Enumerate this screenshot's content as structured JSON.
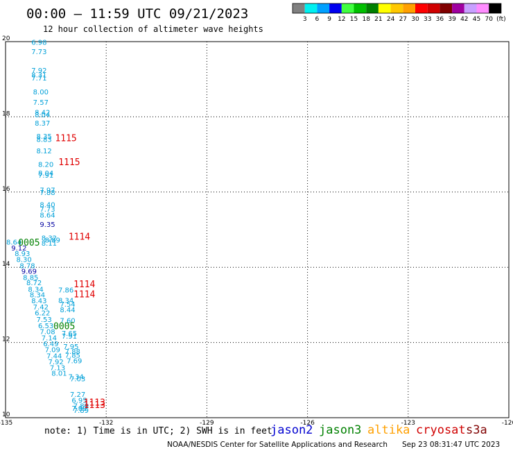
{
  "header": {
    "title": "00:00 – 11:59 UTC 09/21/2023",
    "subtitle": "12 hour collection of altimeter wave heights"
  },
  "colorbar": {
    "labels": [
      "3",
      "6",
      "9",
      "12",
      "15",
      "18",
      "21",
      "24",
      "27",
      "30",
      "33",
      "36",
      "39",
      "42",
      "45",
      "70",
      "(ft)"
    ],
    "colors": [
      "#808080",
      "#00f0f0",
      "#00a0ff",
      "#0000f0",
      "#40ff40",
      "#00c000",
      "#008000",
      "#ffff00",
      "#ffc800",
      "#ffa000",
      "#ff0000",
      "#d00000",
      "#800000",
      "#a000a0",
      "#c8a0ff",
      "#ff8cff",
      "#000000"
    ]
  },
  "footer": {
    "note": "note: 1) Time is in UTC; 2) SWH is in feet",
    "satellites": [
      {
        "name": "jason2",
        "color": "#0000d0"
      },
      {
        "name": "jason3",
        "color": "#008000"
      },
      {
        "name": "altika",
        "color": "#ffa000"
      },
      {
        "name": "cryosat",
        "color": "#d00000"
      },
      {
        "name": "s3a",
        "color": "#800000"
      }
    ],
    "credit": "NOAA/NESDIS Center for Satellite Applications and Research",
    "timestamp": "Sep 23 08:31:47 UTC 2023"
  },
  "chart_data": {
    "type": "scatter",
    "xlim": [
      -135,
      -120
    ],
    "ylim": [
      10,
      20
    ],
    "x_ticks": [
      -135,
      -132,
      -129,
      -126,
      -123,
      -120
    ],
    "x_tick_labels": [
      "-135",
      "-132",
      "-129",
      "-126",
      "-123",
      "-120"
    ],
    "y_ticks": [
      10,
      12,
      14,
      16,
      18,
      20
    ],
    "grid": true,
    "colors": {
      "light": "#00a0d8",
      "dark": "#0000a0",
      "pass_jason3": "#008000",
      "pass_cryosat": "#e00000"
    },
    "points": [
      {
        "x": -134.0,
        "y": 19.92,
        "label": "6.98",
        "c": "light"
      },
      {
        "x": -134.0,
        "y": 19.67,
        "label": "7.73",
        "c": "light"
      },
      {
        "x": -134.0,
        "y": 19.17,
        "label": "7.92",
        "c": "light"
      },
      {
        "x": -134.0,
        "y": 19.05,
        "label": "8.31",
        "c": "light"
      },
      {
        "x": -134.0,
        "y": 18.97,
        "label": "7.71",
        "c": "light"
      },
      {
        "x": -133.95,
        "y": 18.6,
        "label": "8.00",
        "c": "light"
      },
      {
        "x": -133.95,
        "y": 18.32,
        "label": "7.57",
        "c": "light"
      },
      {
        "x": -133.9,
        "y": 18.05,
        "label": "8.42",
        "c": "light"
      },
      {
        "x": -133.9,
        "y": 17.99,
        "label": "8.04",
        "c": "light"
      },
      {
        "x": -133.9,
        "y": 17.77,
        "label": "8.37",
        "c": "light"
      },
      {
        "x": -133.85,
        "y": 17.42,
        "label": "8.35",
        "c": "light"
      },
      {
        "x": -133.85,
        "y": 17.33,
        "label": "8.83",
        "c": "light"
      },
      {
        "x": -133.85,
        "y": 17.03,
        "label": "8.12",
        "c": "light"
      },
      {
        "x": -133.8,
        "y": 16.67,
        "label": "8.20",
        "c": "light"
      },
      {
        "x": -133.8,
        "y": 16.44,
        "label": "8.04",
        "c": "light"
      },
      {
        "x": -133.8,
        "y": 16.38,
        "label": "7.91",
        "c": "light"
      },
      {
        "x": -133.75,
        "y": 15.99,
        "label": "7.97",
        "c": "light"
      },
      {
        "x": -133.75,
        "y": 15.92,
        "label": "7.88",
        "c": "light"
      },
      {
        "x": -133.75,
        "y": 15.6,
        "label": "8.40",
        "c": "light"
      },
      {
        "x": -133.75,
        "y": 15.48,
        "label": "7.73",
        "c": "light"
      },
      {
        "x": -133.75,
        "y": 15.32,
        "label": "8.64",
        "c": "light"
      },
      {
        "x": -133.75,
        "y": 15.07,
        "label": "9.35",
        "c": "dark"
      },
      {
        "x": -133.7,
        "y": 14.71,
        "label": "8.32",
        "c": "light"
      },
      {
        "x": -133.6,
        "y": 14.66,
        "label": "8.89",
        "c": "light"
      },
      {
        "x": -133.7,
        "y": 14.58,
        "label": "8.11",
        "c": "light"
      },
      {
        "x": -134.75,
        "y": 14.6,
        "label": "8.64",
        "c": "light"
      },
      {
        "x": -134.6,
        "y": 14.45,
        "label": "9.12",
        "c": "dark"
      },
      {
        "x": -134.5,
        "y": 14.3,
        "label": "8.93",
        "c": "light"
      },
      {
        "x": -134.45,
        "y": 14.14,
        "label": "8.30",
        "c": "light"
      },
      {
        "x": -134.35,
        "y": 13.98,
        "label": "8.78",
        "c": "light"
      },
      {
        "x": -134.3,
        "y": 13.83,
        "label": "9.69",
        "c": "dark"
      },
      {
        "x": -134.25,
        "y": 13.66,
        "label": "8.85",
        "c": "light"
      },
      {
        "x": -134.15,
        "y": 13.52,
        "label": "8.72",
        "c": "light"
      },
      {
        "x": -134.1,
        "y": 13.35,
        "label": "8.34",
        "c": "light"
      },
      {
        "x": -134.05,
        "y": 13.2,
        "label": "8.34",
        "c": "light"
      },
      {
        "x": -134.0,
        "y": 13.04,
        "label": "8.43",
        "c": "light"
      },
      {
        "x": -133.95,
        "y": 12.88,
        "label": "7.42",
        "c": "light"
      },
      {
        "x": -133.9,
        "y": 12.72,
        "label": "6.22",
        "c": "light"
      },
      {
        "x": -133.85,
        "y": 12.55,
        "label": "7.53",
        "c": "light"
      },
      {
        "x": -133.8,
        "y": 12.38,
        "label": "6.53",
        "c": "light"
      },
      {
        "x": -133.75,
        "y": 12.22,
        "label": "7.08",
        "c": "light"
      },
      {
        "x": -133.7,
        "y": 12.06,
        "label": "7.14",
        "c": "light"
      },
      {
        "x": -133.65,
        "y": 11.9,
        "label": "6.49",
        "c": "light"
      },
      {
        "x": -133.6,
        "y": 11.74,
        "label": "7.09",
        "c": "light"
      },
      {
        "x": -133.55,
        "y": 11.58,
        "label": "7.44",
        "c": "light"
      },
      {
        "x": -133.5,
        "y": 11.42,
        "label": "7.92",
        "c": "light"
      },
      {
        "x": -133.45,
        "y": 11.26,
        "label": "7.13",
        "c": "light"
      },
      {
        "x": -133.4,
        "y": 11.12,
        "label": "8.01",
        "c": "light"
      },
      {
        "x": -133.2,
        "y": 13.33,
        "label": "7.86",
        "c": "light"
      },
      {
        "x": -133.2,
        "y": 13.05,
        "label": "8.34",
        "c": "light"
      },
      {
        "x": -133.15,
        "y": 12.95,
        "label": "7.54",
        "c": "light"
      },
      {
        "x": -133.15,
        "y": 12.8,
        "label": "8.44",
        "c": "light"
      },
      {
        "x": -133.15,
        "y": 12.52,
        "label": "7.60",
        "c": "light"
      },
      {
        "x": -133.1,
        "y": 12.18,
        "label": "7.65",
        "c": "light"
      },
      {
        "x": -133.1,
        "y": 12.1,
        "label": "7.91",
        "c": "light"
      },
      {
        "x": -133.05,
        "y": 11.83,
        "label": "7.95",
        "c": "light"
      },
      {
        "x": -133.0,
        "y": 11.7,
        "label": "7.88",
        "c": "light"
      },
      {
        "x": -133.0,
        "y": 11.6,
        "label": "7.85",
        "c": "light"
      },
      {
        "x": -132.95,
        "y": 11.45,
        "label": "7.69",
        "c": "light"
      },
      {
        "x": -132.9,
        "y": 11.02,
        "label": "7.34",
        "c": "light"
      },
      {
        "x": -132.85,
        "y": 10.97,
        "label": "7.03",
        "c": "light"
      },
      {
        "x": -132.85,
        "y": 10.55,
        "label": "7.27",
        "c": "light"
      },
      {
        "x": -132.8,
        "y": 10.4,
        "label": "6.95",
        "c": "light"
      },
      {
        "x": -132.75,
        "y": 10.25,
        "label": "7.89",
        "c": "light"
      },
      {
        "x": -132.8,
        "y": 10.18,
        "label": "7.89",
        "c": "light"
      },
      {
        "x": -132.75,
        "y": 10.13,
        "label": "7.89",
        "c": "light"
      }
    ],
    "passes": [
      {
        "x": -133.2,
        "y": 17.35,
        "label": "1115",
        "c": "pass_cryosat"
      },
      {
        "x": -133.1,
        "y": 16.72,
        "label": "1115",
        "c": "pass_cryosat"
      },
      {
        "x": -132.8,
        "y": 14.73,
        "label": "1114",
        "c": "pass_cryosat"
      },
      {
        "x": -134.3,
        "y": 14.58,
        "label": "0005",
        "c": "pass_jason3"
      },
      {
        "x": -132.65,
        "y": 13.47,
        "label": "1114",
        "c": "pass_cryosat"
      },
      {
        "x": -132.65,
        "y": 13.2,
        "label": "1114",
        "c": "pass_cryosat"
      },
      {
        "x": -133.25,
        "y": 12.35,
        "label": "0005",
        "c": "pass_jason3"
      },
      {
        "x": -132.35,
        "y": 10.32,
        "label": "1113",
        "c": "pass_cryosat"
      },
      {
        "x": -132.35,
        "y": 10.26,
        "label": "1113",
        "c": "pass_cryosat"
      }
    ]
  }
}
